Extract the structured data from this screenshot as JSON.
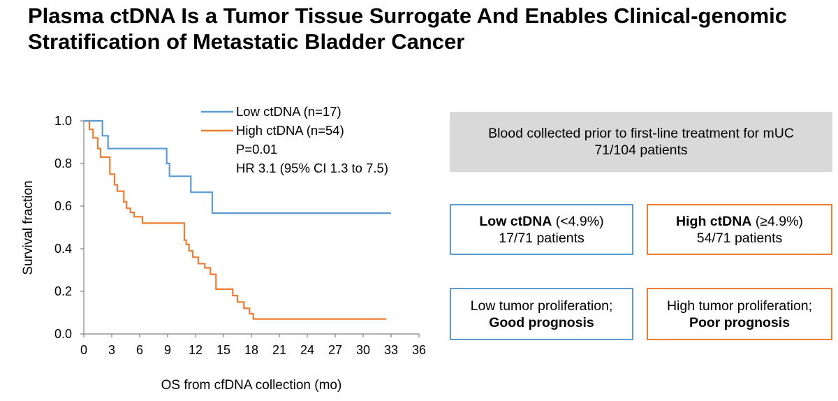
{
  "title": "Plasma ctDNA Is a Tumor Tissue Surrogate And Enables Clinical-genomic Stratification of Metastatic Bladder Cancer",
  "chart_data": {
    "type": "line",
    "title": "",
    "xlabel": "OS from cfDNA collection (mo)",
    "ylabel": "Survival fraction",
    "xlim": [
      0,
      36
    ],
    "ylim": [
      0,
      1.0
    ],
    "xticks": [
      "0",
      "3",
      "6",
      "9",
      "12",
      "15",
      "18",
      "21",
      "24",
      "27",
      "30",
      "33",
      "36"
    ],
    "yticks": [
      "0.0",
      "0.2",
      "0.4",
      "0.6",
      "0.8",
      "1.0"
    ],
    "grid": false,
    "legend_position": "top-right",
    "annotations": [
      "P=0.01",
      "HR 3.1 (95% CI 1.3 to 7.5)"
    ],
    "series": [
      {
        "name": "Low ctDNA (n=17)",
        "color": "#5b9bd5",
        "x": [
          0,
          2.0,
          2.0,
          2.6,
          2.6,
          8.9,
          8.9,
          9.2,
          9.2,
          11.5,
          11.5,
          13.8,
          13.8,
          33.0
        ],
        "y": [
          1.0,
          1.0,
          0.93,
          0.93,
          0.87,
          0.87,
          0.8,
          0.8,
          0.74,
          0.74,
          0.665,
          0.665,
          0.567,
          0.567
        ]
      },
      {
        "name": "High ctDNA (n=54)",
        "color": "#ed7d31",
        "x": [
          0.6,
          0.6,
          1.0,
          1.0,
          1.5,
          1.5,
          1.8,
          1.8,
          2.8,
          2.8,
          3.3,
          3.3,
          3.6,
          3.6,
          4.3,
          4.3,
          4.6,
          4.6,
          5.0,
          5.0,
          5.4,
          5.4,
          6.3,
          6.3,
          10.8,
          10.8,
          11.0,
          11.0,
          11.3,
          11.3,
          11.7,
          11.7,
          12.3,
          12.3,
          13.0,
          13.0,
          13.6,
          13.6,
          14.2,
          14.2,
          16.0,
          16.0,
          16.5,
          16.5,
          17.2,
          17.2,
          17.8,
          17.8,
          18.2,
          18.2,
          19.6,
          19.6,
          32.5
        ],
        "y": [
          1.0,
          0.96,
          0.96,
          0.92,
          0.92,
          0.87,
          0.87,
          0.83,
          0.83,
          0.75,
          0.75,
          0.7,
          0.7,
          0.67,
          0.67,
          0.62,
          0.62,
          0.59,
          0.59,
          0.57,
          0.57,
          0.55,
          0.55,
          0.52,
          0.52,
          0.44,
          0.44,
          0.42,
          0.42,
          0.39,
          0.39,
          0.36,
          0.36,
          0.33,
          0.33,
          0.31,
          0.31,
          0.28,
          0.28,
          0.21,
          0.21,
          0.18,
          0.18,
          0.15,
          0.15,
          0.12,
          0.12,
          0.095,
          0.095,
          0.07,
          0.07,
          0.07,
          0.07
        ]
      }
    ]
  },
  "boxes": {
    "cohort": {
      "line1": "Blood collected prior to first-line treatment for mUC",
      "line2": "71/104 patients"
    },
    "low": {
      "heading_bold": "Low ctDNA",
      "heading_rest": " (<4.9%)",
      "patients": "17/71 patients"
    },
    "high": {
      "heading_bold": "High ctDNA",
      "heading_rest": " (≥4.9%)",
      "patients": "54/71 patients"
    },
    "low_outcome": {
      "line1": "Low tumor proliferation;",
      "line2": "Good prognosis"
    },
    "high_outcome": {
      "line1": "High tumor proliferation;",
      "line2": "Poor prognosis"
    }
  }
}
